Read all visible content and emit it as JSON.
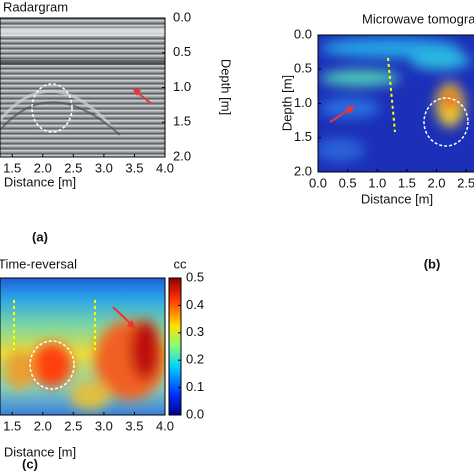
{
  "chart_data": [
    {
      "type": "image",
      "title": "Radargram",
      "xlabel": "Distance [m]",
      "ylabel": "Depth [m]",
      "panel": "(a)",
      "xlim": [
        1.3,
        4.0
      ],
      "xticks": [
        1.5,
        {
          "value": 2,
          "label": "2.0"
        },
        2.5,
        {
          "value": 3,
          "label": "3.0"
        },
        3.5,
        {
          "value": 4,
          "label": "4.0"
        }
      ],
      "ylim": [
        0,
        2
      ],
      "yticks": [
        {
          "value": 0,
          "label": "0.0"
        },
        0.5,
        {
          "value": 1,
          "label": "1.0"
        },
        1.5,
        {
          "value": 2,
          "label": "2.0"
        }
      ]
    },
    {
      "type": "image",
      "title": "Microwave tomography",
      "xlabel": "Distance [m]",
      "ylabel": "Depth [m]",
      "panel": "(b)",
      "xlim": [
        0,
        2.7
      ],
      "xticks": [
        {
          "value": 0,
          "label": "0.0"
        },
        0.5,
        {
          "value": 1,
          "label": "1.0"
        },
        1.5,
        {
          "value": 2,
          "label": "2.0"
        },
        2.5
      ],
      "ylim": [
        0,
        2
      ],
      "yticks": [
        {
          "value": 0,
          "label": "0.0"
        },
        0.5,
        {
          "value": 1,
          "label": "1.0"
        },
        1.5,
        {
          "value": 2,
          "label": "2.0"
        }
      ]
    },
    {
      "type": "image",
      "title": "Time-reversal",
      "xlabel": "Distance [m]",
      "panel": "(c)",
      "xlim": [
        1.3,
        4.0
      ],
      "xticks": [
        1.5,
        {
          "value": 2,
          "label": "2.0"
        },
        2.5,
        {
          "value": 3,
          "label": "3.0"
        },
        3.5,
        {
          "value": 4,
          "label": "4.0"
        }
      ],
      "colorbar_label": "cc",
      "clim": [
        0,
        0.5
      ],
      "cticks": [
        {
          "value": 0,
          "label": "0.0"
        },
        0.1,
        0.2,
        0.3,
        0.4,
        0.5
      ]
    }
  ]
}
